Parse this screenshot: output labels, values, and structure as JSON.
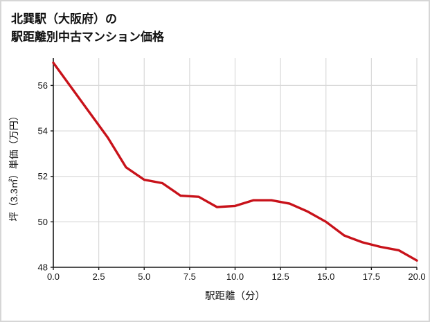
{
  "title_line1": "北巽駅（大阪府）の",
  "title_line2": "駅距離別中古マンション価格",
  "chart_data": {
    "type": "line",
    "title": "北巽駅（大阪府）の駅距離別中古マンション価格",
    "xlabel": "駅距離（分）",
    "ylabel": "坪（3.3㎡）単価（万円）",
    "x": [
      0,
      1,
      2,
      3,
      4,
      5,
      6,
      7,
      8,
      9,
      10,
      11,
      12,
      13,
      14,
      15,
      16,
      17,
      18,
      19,
      20
    ],
    "values": [
      57.0,
      55.9,
      54.8,
      53.7,
      52.4,
      51.85,
      51.7,
      51.15,
      51.1,
      50.65,
      50.7,
      50.95,
      50.95,
      50.8,
      50.45,
      50.0,
      49.4,
      49.1,
      48.9,
      48.75,
      48.3
    ],
    "xlim": [
      0,
      20
    ],
    "ylim": [
      48,
      57.2
    ],
    "x_ticks": [
      0,
      2.5,
      5,
      7.5,
      10,
      12.5,
      15,
      17.5,
      20
    ],
    "x_tick_labels": [
      "0.0",
      "2.5",
      "5.0",
      "7.5",
      "10.0",
      "12.5",
      "15.0",
      "17.5",
      "20.0"
    ],
    "y_ticks": [
      48,
      50,
      52,
      54,
      56
    ],
    "y_tick_labels": [
      "48",
      "50",
      "52",
      "54",
      "56"
    ],
    "grid": true,
    "legend": "none",
    "line_color": "#c8121a",
    "grid_color": "#d9d9d9",
    "spine_color": "#1a1a1a"
  }
}
